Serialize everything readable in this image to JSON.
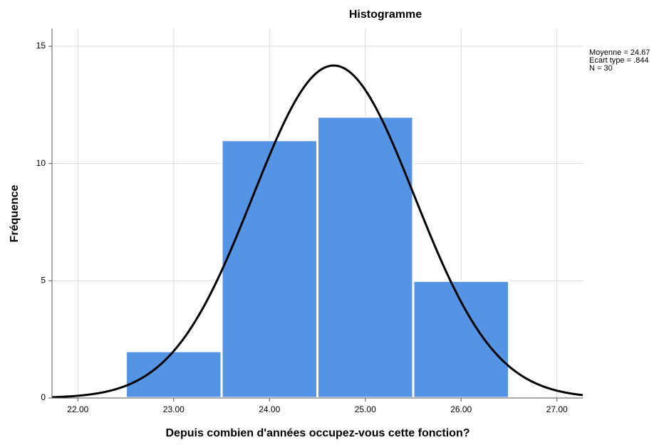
{
  "chart_data": {
    "type": "histogram",
    "title": "Histogramme",
    "xlabel": "Depuis combien d'années occupez-vous cette fonction?",
    "ylabel": "Fréquence",
    "bins": [
      22.5,
      23.5,
      24.5,
      25.5,
      26.5
    ],
    "values": [
      2,
      11,
      12,
      5
    ],
    "color": "#5594e5",
    "curve_color": "#000000",
    "xlim": [
      21.73,
      27.27
    ],
    "ylim": [
      0,
      15.76
    ],
    "xticks": [
      {
        "value": 22,
        "label": "22.00"
      },
      {
        "value": 23,
        "label": "23.00"
      },
      {
        "value": 24,
        "label": "24.00"
      },
      {
        "value": 25,
        "label": "25.00"
      },
      {
        "value": 26,
        "label": "26.00"
      },
      {
        "value": 27,
        "label": "27.00"
      }
    ],
    "yticks": [
      0,
      5,
      10,
      15
    ],
    "grid": true,
    "stats": [
      {
        "value": 24.67,
        "label": "Moyenne = 24.67"
      },
      {
        "value": 0.844,
        "label": "Ecart type = .844"
      },
      {
        "value": 30,
        "label": "N = 30"
      }
    ]
  }
}
